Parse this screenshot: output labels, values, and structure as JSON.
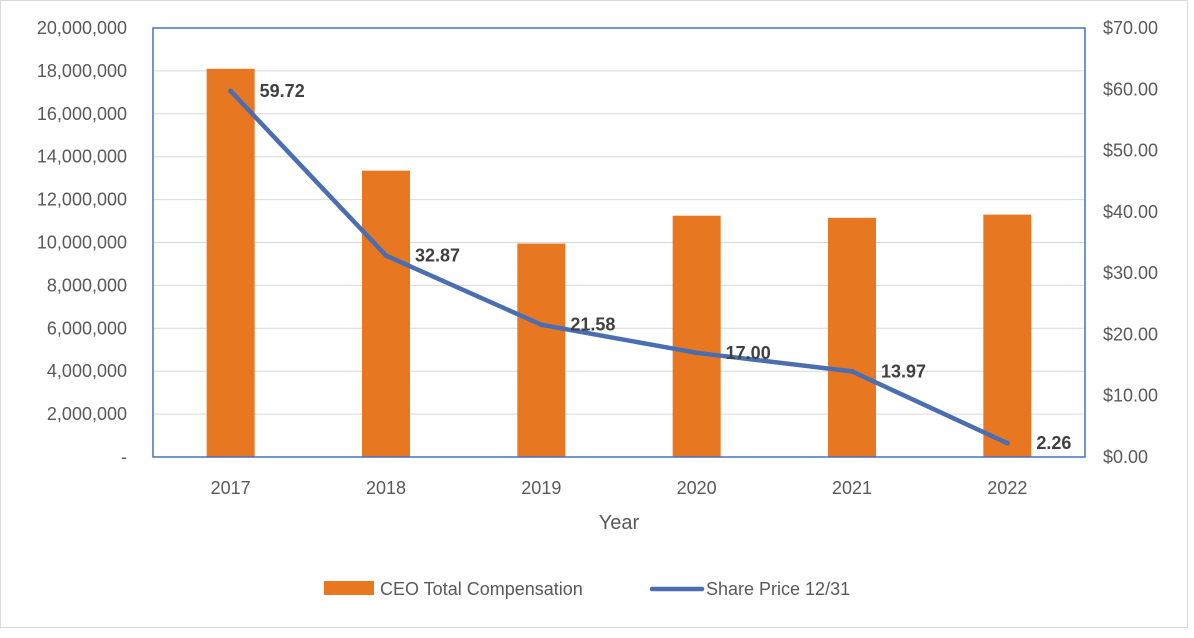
{
  "chart_data": {
    "type": "bar+line",
    "title": "",
    "xlabel": "Year",
    "categories": [
      "2017",
      "2018",
      "2019",
      "2020",
      "2021",
      "2022"
    ],
    "series": [
      {
        "name": "CEO Total Compensation",
        "type": "bar",
        "axis": "left",
        "color": "#E87722",
        "values": [
          18100000,
          13350000,
          9950000,
          11250000,
          11150000,
          11300000
        ]
      },
      {
        "name": "Share Price 12/31",
        "type": "line",
        "axis": "right",
        "color": "#4A6EB0",
        "values": [
          59.72,
          32.87,
          21.58,
          17.0,
          13.97,
          2.26
        ],
        "data_labels": [
          "59.72",
          "32.87",
          "21.58",
          "17.00",
          "13.97",
          "2.26"
        ]
      }
    ],
    "y_left": {
      "ylim": [
        0,
        20000000
      ],
      "ticks": [
        0,
        2000000,
        4000000,
        6000000,
        8000000,
        10000000,
        12000000,
        14000000,
        16000000,
        18000000,
        20000000
      ],
      "tick_labels": [
        "-",
        "2,000,000",
        "4,000,000",
        "6,000,000",
        "8,000,000",
        "10,000,000",
        "12,000,000",
        "14,000,000",
        "16,000,000",
        "18,000,000",
        "20,000,000"
      ]
    },
    "y_right": {
      "ylim": [
        0,
        70
      ],
      "ticks": [
        0,
        10,
        20,
        30,
        40,
        50,
        60,
        70
      ],
      "tick_labels": [
        "$0.00",
        "$10.00",
        "$20.00",
        "$30.00",
        "$40.00",
        "$50.00",
        "$60.00",
        "$70.00"
      ]
    },
    "grid": true,
    "legend": "bottom-center"
  }
}
